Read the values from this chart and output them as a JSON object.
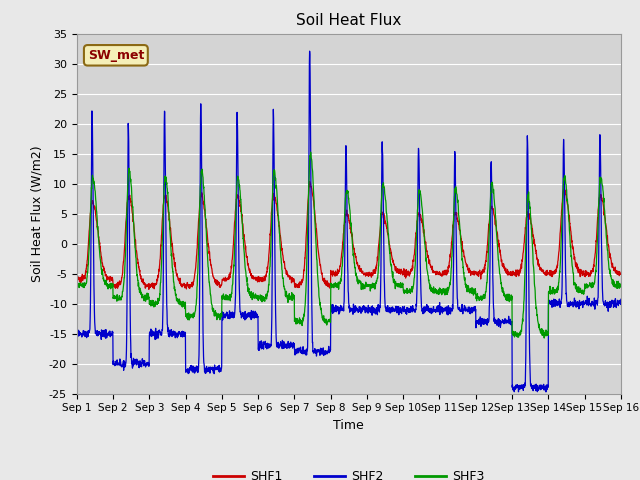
{
  "title": "Soil Heat Flux",
  "xlabel": "Time",
  "ylabel": "Soil Heat Flux (W/m2)",
  "ylim": [
    -25,
    35
  ],
  "yticks": [
    -25,
    -20,
    -15,
    -10,
    -5,
    0,
    5,
    10,
    15,
    20,
    25,
    30,
    35
  ],
  "x_tick_labels": [
    "Sep 1",
    "Sep 2",
    "Sep 3",
    "Sep 4",
    "Sep 5",
    "Sep 6",
    "Sep 7",
    "Sep 8",
    "Sep 9",
    "Sep 10",
    "Sep 11",
    "Sep 12",
    "Sep 13",
    "Sep 14",
    "Sep 15",
    "Sep 16"
  ],
  "legend_label": "SW_met",
  "series_labels": [
    "SHF1",
    "SHF2",
    "SHF3"
  ],
  "colors": [
    "#cc0000",
    "#0000cc",
    "#009900"
  ],
  "background_color": "#e8e8e8",
  "plot_bg_color": "#d4d4d4",
  "n_days": 15,
  "pts_per_day": 144
}
